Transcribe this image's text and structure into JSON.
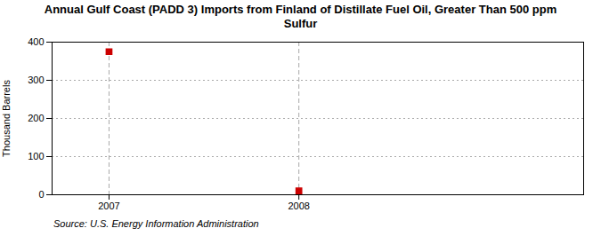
{
  "chart_data": {
    "type": "scatter",
    "title": "Annual Gulf Coast (PADD 3) Imports from Finland of Distillate Fuel Oil, Greater Than 500 ppm\nSulfur",
    "ylabel": "Thousand Barrels",
    "annotation": "Source: U.S. Energy Information Administration",
    "x": [
      2007,
      2008
    ],
    "values": [
      375,
      10
    ],
    "color": "#cc0000",
    "marker": "square",
    "xlim": [
      2006.7,
      2009.5
    ],
    "xticks": [
      2007,
      2008
    ],
    "ylim": [
      0,
      400
    ],
    "yticks": [
      0,
      100,
      200,
      300,
      400
    ],
    "grid": true
  }
}
